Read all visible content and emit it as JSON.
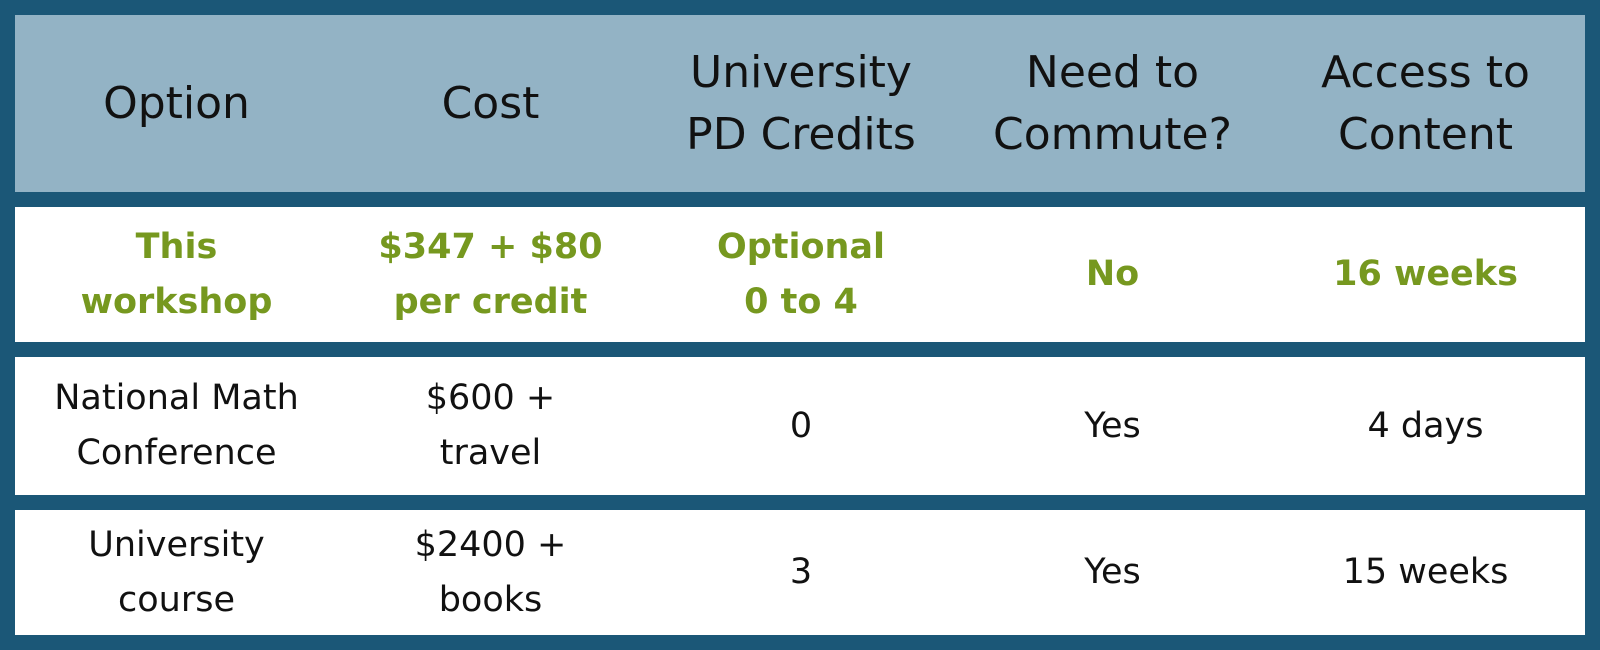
{
  "colors": {
    "border": "#1b5777",
    "header_bg": "#93b3c5",
    "highlight_text": "#76981f"
  },
  "table": {
    "headers": [
      "Option",
      "Cost",
      "University\nPD Credits",
      "Need to\nCommute?",
      "Access to\nContent"
    ],
    "rows": [
      [
        "This\nworkshop",
        "$347 + $80\nper credit",
        "Optional\n0 to 4",
        "No",
        "16 weeks"
      ],
      [
        "National Math\nConference",
        "$600 +\ntravel",
        "0",
        "Yes",
        "4 days"
      ],
      [
        "University\ncourse",
        "$2400 +\nbooks",
        "3",
        "Yes",
        "15 weeks"
      ]
    ]
  }
}
